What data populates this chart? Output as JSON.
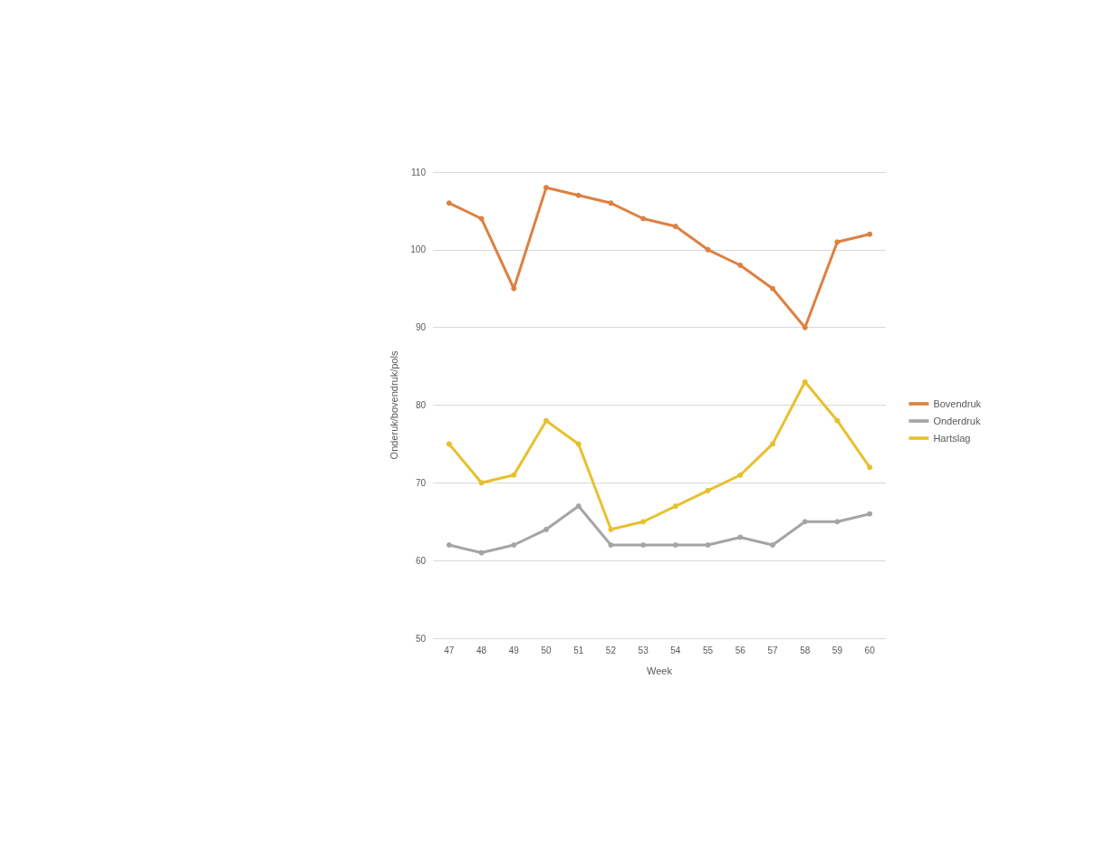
{
  "chart_data": {
    "type": "line",
    "xlabel": "Week",
    "ylabel": "Onderuk/bovendruk/pols",
    "categories": [
      "47",
      "48",
      "49",
      "50",
      "51",
      "52",
      "53",
      "54",
      "55",
      "56",
      "57",
      "58",
      "59",
      "60"
    ],
    "series": [
      {
        "name": "Bovendruk",
        "color": "#dd8142",
        "values": [
          106,
          104,
          95,
          108,
          107,
          106,
          104,
          103,
          100,
          98,
          95,
          90,
          101,
          102
        ]
      },
      {
        "name": "Onderdruk",
        "color": "#a5a5a5",
        "values": [
          62,
          61,
          62,
          64,
          67,
          62,
          62,
          62,
          62,
          63,
          62,
          65,
          65,
          66
        ]
      },
      {
        "name": "Hartslag",
        "color": "#e8c02e",
        "values": [
          75,
          70,
          71,
          78,
          75,
          64,
          65,
          67,
          69,
          71,
          75,
          83,
          78,
          72
        ]
      }
    ],
    "ylim": [
      50,
      110
    ],
    "yticks": [
      50,
      60,
      70,
      80,
      90,
      100,
      110
    ],
    "grid": "y",
    "legend": "right",
    "marker": "circle",
    "line_style": "solid"
  }
}
